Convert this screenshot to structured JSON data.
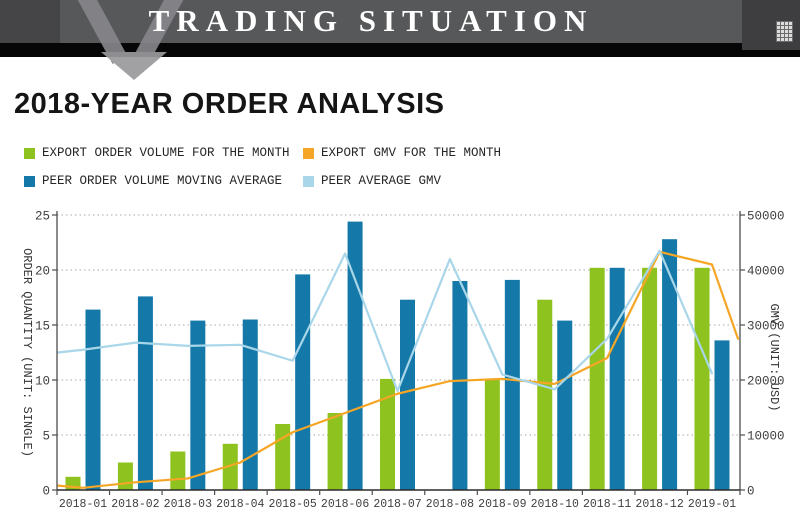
{
  "header": {
    "title": "TRADING SITUATION",
    "grid_icon": "grid-dots-icon"
  },
  "page": {
    "title": "2018-YEAR ORDER ANALYSIS"
  },
  "colors": {
    "export_order_green": "#8dc21f",
    "peer_order_blue": "#1478a8",
    "export_gmv_orange": "#f5a626",
    "peer_gmv_lightblue": "#a9d6e9",
    "header_gray": "#57585a",
    "header_dark": "#3e3e40"
  },
  "legend": [
    {
      "label": "EXPORT ORDER VOLUME FOR THE MONTH",
      "color": "#8dc21f"
    },
    {
      "label": "EXPORT GMV FOR THE MONTH",
      "color": "#f5a626"
    },
    {
      "label": "PEER ORDER VOLUME MOVING AVERAGE",
      "color": "#1478a8"
    },
    {
      "label": "PEER AVERAGE GMV",
      "color": "#a9d6e9"
    }
  ],
  "chart_data": {
    "type": "bar",
    "title": "2018-YEAR ORDER ANALYSIS",
    "categories": [
      "2018-01",
      "2018-02",
      "2018-03",
      "2018-04",
      "2018-05",
      "2018-06",
      "2018-07",
      "2018-08",
      "2018-09",
      "2018-10",
      "2018-11",
      "2018-12",
      "2019-01"
    ],
    "series": [
      {
        "name": "EXPORT ORDER VOLUME FOR THE MONTH",
        "type": "bar",
        "axis": "left",
        "color": "#8dc21f",
        "values": [
          1.2,
          2.5,
          3.5,
          4.2,
          6.0,
          7.0,
          10.1,
          0,
          10.1,
          17.3,
          20.2,
          20.2,
          20.2
        ]
      },
      {
        "name": "PEER ORDER VOLUME MOVING AVERAGE",
        "type": "bar",
        "axis": "left",
        "color": "#1478a8",
        "values": [
          16.4,
          17.6,
          15.4,
          15.5,
          19.6,
          24.4,
          17.3,
          19.0,
          19.1,
          15.4,
          20.2,
          22.8,
          13.6
        ]
      },
      {
        "name": "EXPORT GMV FOR THE MONTH",
        "type": "line",
        "axis": "right",
        "color": "#f5a626",
        "values": [
          400,
          1400,
          2100,
          5000,
          10500,
          14000,
          17500,
          19800,
          20200,
          19300,
          24000,
          43300,
          41000
        ],
        "edge_start": 800,
        "edge_end": 27500
      },
      {
        "name": "PEER AVERAGE GMV",
        "type": "line",
        "axis": "right",
        "color": "#a9d6e9",
        "values": [
          25500,
          26800,
          26200,
          26400,
          23500,
          43000,
          18000,
          42000,
          21000,
          18300,
          27500,
          43500,
          21200
        ],
        "edge_start": 25000,
        "edge_end": null
      }
    ],
    "left_axis": {
      "title": "ORDER QUANTITY (UNIT: SINGLE)",
      "ticks": [
        0,
        5,
        10,
        15,
        20,
        25
      ],
      "min": 0,
      "max": 25
    },
    "right_axis": {
      "title": "GMV (UNIT: USD)",
      "ticks": [
        0,
        10000,
        20000,
        30000,
        40000,
        50000
      ],
      "min": 0,
      "max": 50000
    },
    "grid": "dotted horizontal gridlines",
    "legend_position": "top-left, two rows"
  }
}
